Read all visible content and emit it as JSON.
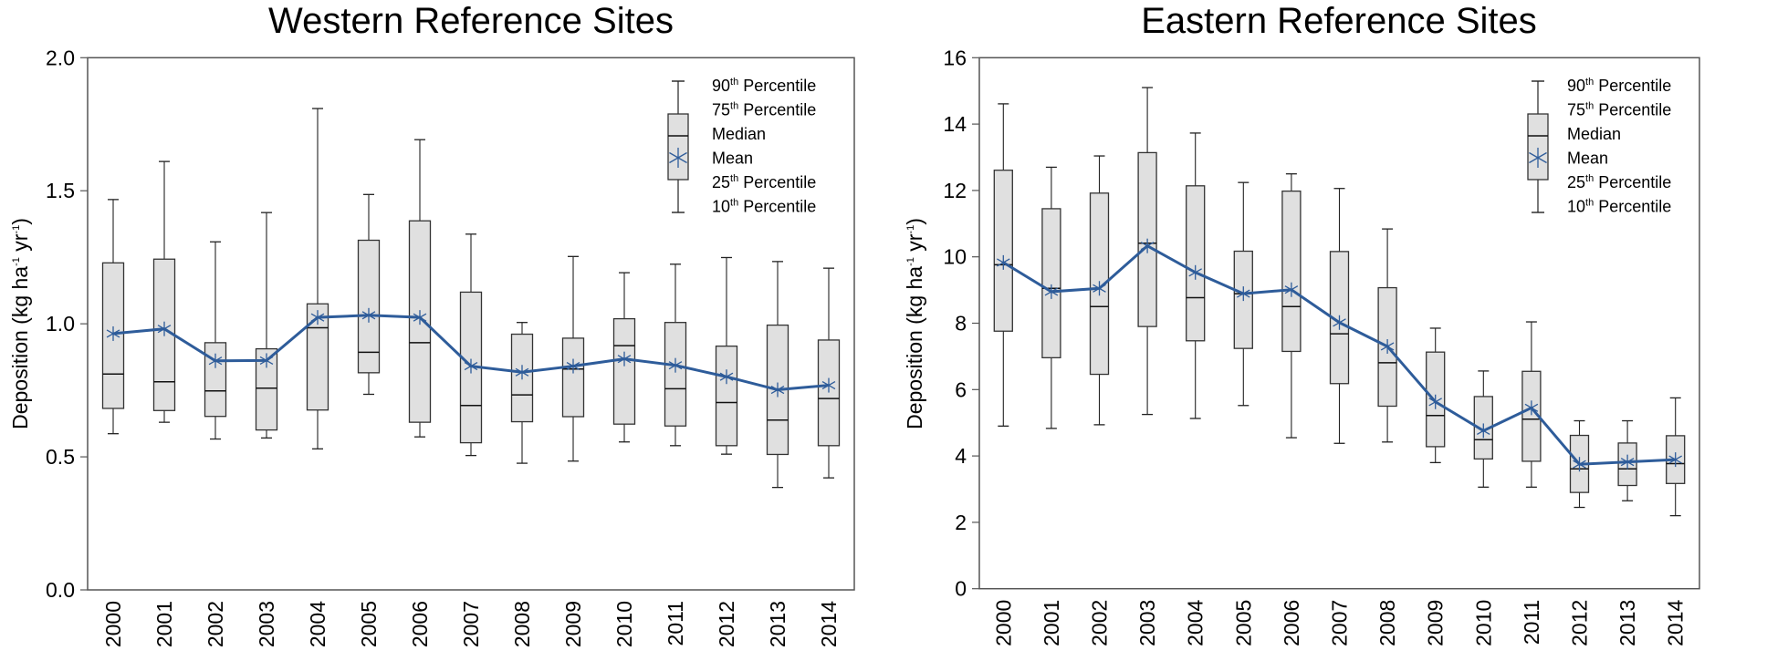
{
  "chart_data": [
    {
      "type": "box",
      "title": "Western Reference Sites",
      "ylabel": {
        "main": "Deposition (kg ha",
        "sup1": "-1",
        "mid": " yr",
        "sup2": "-1",
        "end": ")"
      },
      "ylim": [
        0,
        2.0
      ],
      "yticks": [
        "0.0",
        "0.5",
        "1.0",
        "1.5",
        "2.0"
      ],
      "ytick_values": [
        0,
        0.5,
        1.0,
        1.5,
        2.0
      ],
      "categories": [
        "2000",
        "2001",
        "2002",
        "2003",
        "2004",
        "2005",
        "2006",
        "2007",
        "2008",
        "2009",
        "2010",
        "2011",
        "2012",
        "2013",
        "2014"
      ],
      "p10": [
        0.587,
        0.63,
        0.567,
        0.571,
        0.53,
        0.735,
        0.575,
        0.505,
        0.476,
        0.484,
        0.556,
        0.542,
        0.51,
        0.385,
        0.421
      ],
      "p25": [
        0.682,
        0.674,
        0.652,
        0.601,
        0.676,
        0.816,
        0.63,
        0.553,
        0.632,
        0.651,
        0.623,
        0.616,
        0.542,
        0.509,
        0.542
      ],
      "median": [
        0.811,
        0.782,
        0.748,
        0.758,
        0.985,
        0.893,
        0.929,
        0.693,
        0.733,
        0.83,
        0.918,
        0.756,
        0.704,
        0.638,
        0.719
      ],
      "p75": [
        1.229,
        1.243,
        0.929,
        0.906,
        1.075,
        1.314,
        1.387,
        1.119,
        0.961,
        0.946,
        1.019,
        1.005,
        0.916,
        0.995,
        0.939
      ],
      "p90": [
        1.467,
        1.61,
        1.308,
        1.418,
        1.809,
        1.486,
        1.692,
        1.337,
        1.005,
        1.253,
        1.192,
        1.224,
        1.249,
        1.234,
        1.209
      ],
      "mean": [
        0.963,
        0.981,
        0.861,
        0.862,
        1.024,
        1.032,
        1.024,
        0.841,
        0.818,
        0.841,
        0.868,
        0.844,
        0.801,
        0.752,
        0.769
      ]
    },
    {
      "type": "box",
      "title": "Eastern Reference Sites",
      "ylabel": {
        "main": "Deposition (kg ha",
        "sup1": "-1",
        "mid": " yr",
        "sup2": "-1",
        "end": ")"
      },
      "ylim": [
        0,
        16
      ],
      "yticks": [
        "0",
        "2",
        "4",
        "6",
        "8",
        "10",
        "12",
        "14",
        "16"
      ],
      "ytick_values": [
        0,
        2,
        4,
        6,
        8,
        10,
        12,
        14,
        16
      ],
      "categories": [
        "2000",
        "2001",
        "2002",
        "2003",
        "2004",
        "2005",
        "2006",
        "2007",
        "2008",
        "2009",
        "2010",
        "2011",
        "2012",
        "2013",
        "2014"
      ],
      "p10": [
        4.9,
        4.83,
        4.94,
        5.25,
        5.13,
        5.52,
        4.55,
        4.38,
        4.42,
        3.8,
        3.06,
        3.06,
        2.45,
        2.65,
        2.2
      ],
      "p25": [
        7.76,
        6.96,
        6.46,
        7.9,
        7.47,
        7.24,
        7.15,
        6.18,
        5.5,
        4.28,
        3.91,
        3.84,
        2.9,
        3.11,
        3.17
      ],
      "median": [
        9.76,
        9.05,
        8.5,
        10.41,
        8.77,
        8.89,
        8.5,
        7.68,
        6.81,
        5.22,
        4.49,
        5.11,
        3.61,
        3.61,
        3.77
      ],
      "p75": [
        12.61,
        11.45,
        11.92,
        13.14,
        12.14,
        10.17,
        11.98,
        10.16,
        9.07,
        7.13,
        5.79,
        6.55,
        4.62,
        4.39,
        4.61
      ],
      "p90": [
        14.61,
        12.7,
        13.04,
        15.1,
        13.73,
        12.24,
        12.5,
        12.06,
        10.84,
        7.85,
        6.56,
        8.04,
        5.06,
        5.06,
        5.75
      ],
      "mean": [
        9.83,
        8.95,
        9.05,
        10.33,
        9.53,
        8.89,
        9.01,
        8.02,
        7.3,
        5.63,
        4.76,
        5.45,
        3.75,
        3.82,
        3.89
      ]
    }
  ],
  "legend": [
    {
      "num": "90",
      "sup": "th",
      "text": " Percentile"
    },
    {
      "num": "75",
      "sup": "th",
      "text": " Percentile"
    },
    {
      "num": "Median",
      "sup": "",
      "text": ""
    },
    {
      "num": "Mean",
      "sup": "",
      "text": ""
    },
    {
      "num": "25",
      "sup": "th",
      "text": " Percentile"
    },
    {
      "num": "10",
      "sup": "th",
      "text": " Percentile"
    }
  ],
  "colors": {
    "mean": "#2E5C9A",
    "box_fill": "#E0E0E0",
    "box_stroke": "#333333",
    "axis": "#555555"
  }
}
